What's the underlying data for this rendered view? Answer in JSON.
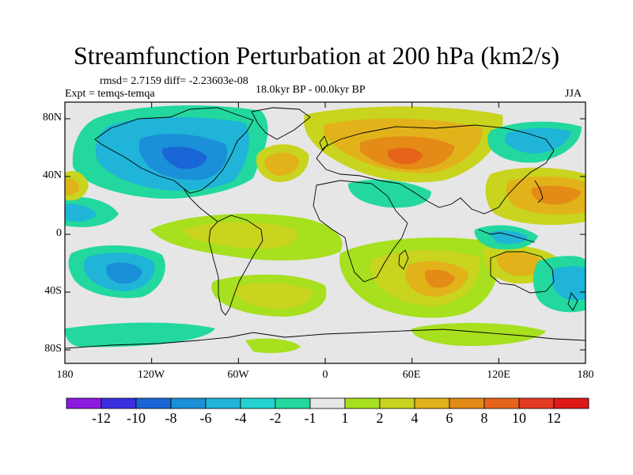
{
  "title": "Streamfunction Perturbation at 200 hPa (km2/s)",
  "stats": "rmsd= 2.7159 diff= -2.23603e-08",
  "experiment": "Expt = temqs-temqa",
  "period": "18.0kyr BP - 00.0kyr BP",
  "season": "JJA",
  "lat_ticks": [
    "80N",
    "40N",
    "0",
    "40S",
    "80S"
  ],
  "lon_ticks": [
    "180",
    "120W",
    "60W",
    "0",
    "60E",
    "120E",
    "180"
  ],
  "colorbar": {
    "labels": [
      "-12",
      "-10",
      "-8",
      "-6",
      "-4",
      "-2",
      "-1",
      "1",
      "2",
      "4",
      "6",
      "8",
      "10",
      "12"
    ],
    "colors": [
      "#8a1ae0",
      "#3a2ee0",
      "#1a66d6",
      "#1a90d8",
      "#1fb4d8",
      "#22d2d0",
      "#22d89e",
      "#e6e6e6",
      "#a6e01e",
      "#c8d41e",
      "#e2b21a",
      "#e48a16",
      "#e6641a",
      "#e43a22",
      "#e01818"
    ]
  },
  "colors": {
    "neg_strong": "#1a66d6",
    "neg_mid": "#1fb4d8",
    "neg_weak": "#22d89e",
    "neutral": "#e6e6e6",
    "pos_weak": "#a6e01e",
    "pos_mid": "#c8d41e",
    "pos_strong": "#e2b21a",
    "pos_max": "#e48a16"
  }
}
